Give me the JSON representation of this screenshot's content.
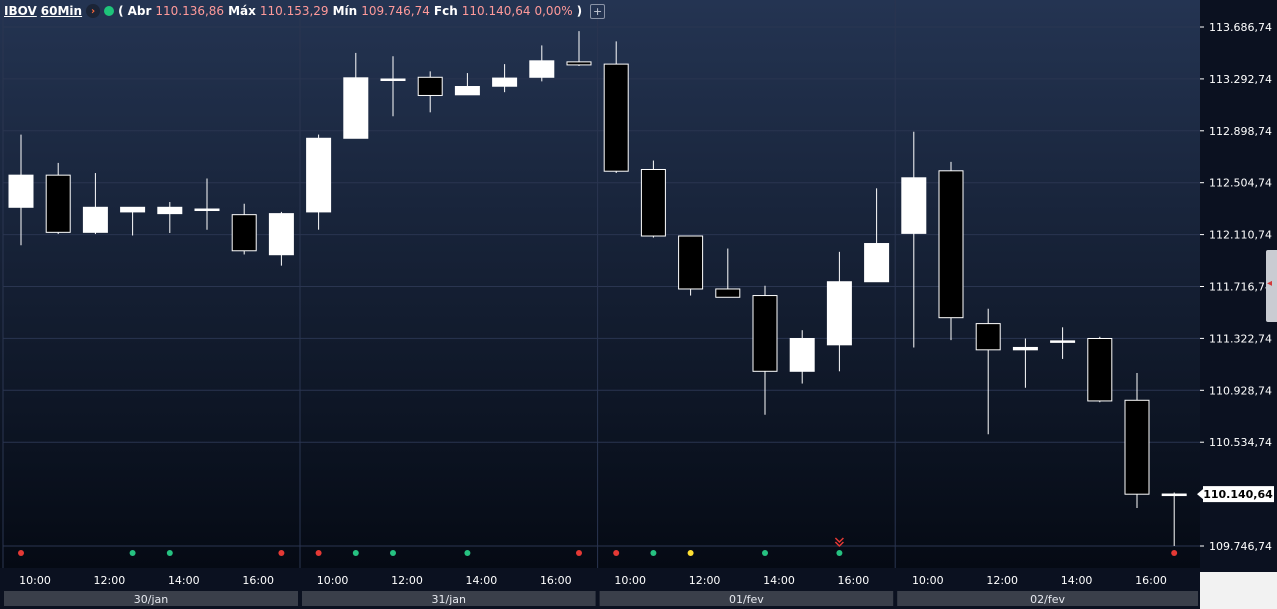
{
  "header": {
    "symbol": "IBOV",
    "timeframe": "60Min",
    "paren_open": "(",
    "abr_label": "Abr",
    "abr_value": "110.136,86",
    "max_label": "Máx",
    "max_value": "110.153,29",
    "min_label": "Mín",
    "min_value": "109.746,74",
    "fch_label": "Fch",
    "fch_value": "110.140,64",
    "change": "0,00%",
    "paren_close": ")",
    "plus": "+"
  },
  "colors": {
    "background_top": "#243452",
    "background_bottom": "#050a14",
    "bull_candle": "#ffffff",
    "bear_candle": "#000000",
    "wick": "#ffffff",
    "grid": "#2a3550",
    "dot_red": "#e53935",
    "dot_green": "#26c281",
    "dot_yellow": "#ffe033",
    "signal_arrow": "#e53935",
    "price_label_bg": "#ffffff",
    "axis_text": "#ffffff"
  },
  "chart_data": {
    "type": "candlestick",
    "y_axis": {
      "min": 109746.74,
      "max": 113686.74,
      "ticks": [
        113686.74,
        113292.74,
        112898.74,
        112504.74,
        112110.74,
        111716.74,
        111322.74,
        110928.74,
        110534.74,
        109746.74
      ],
      "tick_labels": [
        "113.686,74",
        "113.292,74",
        "112.898,74",
        "112.504,74",
        "112.110,74",
        "111.716,74",
        "111.322,74",
        "110.928,74",
        "110.534,74",
        "109.746,74"
      ],
      "position": "right"
    },
    "last_price": 110140.64,
    "last_price_label": "110.140,64",
    "x_time_labels": [
      {
        "index": 0,
        "text": "10:00"
      },
      {
        "index": 2,
        "text": "12:00"
      },
      {
        "index": 4,
        "text": "14:00"
      },
      {
        "index": 6,
        "text": "16:00"
      },
      {
        "index": 8,
        "text": "10:00"
      },
      {
        "index": 10,
        "text": "12:00"
      },
      {
        "index": 12,
        "text": "14:00"
      },
      {
        "index": 14,
        "text": "16:00"
      },
      {
        "index": 16,
        "text": "10:00"
      },
      {
        "index": 18,
        "text": "12:00"
      },
      {
        "index": 20,
        "text": "14:00"
      },
      {
        "index": 22,
        "text": "16:00"
      },
      {
        "index": 24,
        "text": "10:00"
      },
      {
        "index": 26,
        "text": "12:00"
      },
      {
        "index": 28,
        "text": "14:00"
      },
      {
        "index": 30,
        "text": "16:00"
      }
    ],
    "day_labels": [
      {
        "start": 0,
        "end": 7,
        "text": "30/jan"
      },
      {
        "start": 8,
        "end": 15,
        "text": "31/jan"
      },
      {
        "start": 16,
        "end": 23,
        "text": "01/fev"
      },
      {
        "start": 24,
        "end": 31,
        "text": "02/fev"
      }
    ],
    "candles": [
      {
        "o": 112318,
        "h": 112870,
        "l": 112030,
        "c": 112562
      },
      {
        "o": 112562,
        "h": 112655,
        "l": 112115,
        "c": 112128
      },
      {
        "o": 112128,
        "h": 112578,
        "l": 112115,
        "c": 112318
      },
      {
        "o": 112283,
        "h": 112318,
        "l": 112104,
        "c": 112318
      },
      {
        "o": 112270,
        "h": 112358,
        "l": 112123,
        "c": 112318
      },
      {
        "o": 112305,
        "h": 112537,
        "l": 112148,
        "c": 112305
      },
      {
        "o": 112262,
        "h": 112345,
        "l": 111960,
        "c": 111988
      },
      {
        "o": 111958,
        "h": 112283,
        "l": 111875,
        "c": 112270
      },
      {
        "o": 112283,
        "h": 112870,
        "l": 112148,
        "c": 112842
      },
      {
        "o": 112842,
        "h": 113490,
        "l": 112842,
        "c": 113301
      },
      {
        "o": 113292,
        "h": 113465,
        "l": 113009,
        "c": 113292
      },
      {
        "o": 113305,
        "h": 113350,
        "l": 113039,
        "c": 113167
      },
      {
        "o": 113172,
        "h": 113337,
        "l": 113172,
        "c": 113235
      },
      {
        "o": 113237,
        "h": 113405,
        "l": 113192,
        "c": 113299
      },
      {
        "o": 113305,
        "h": 113547,
        "l": 113274,
        "c": 113430
      },
      {
        "o": 113422,
        "h": 113655,
        "l": 113391,
        "c": 113399
      },
      {
        "o": 113405,
        "h": 113578,
        "l": 112578,
        "c": 112592
      },
      {
        "o": 112605,
        "h": 112673,
        "l": 112088,
        "c": 112100
      },
      {
        "o": 112100,
        "h": 112100,
        "l": 111648,
        "c": 111698
      },
      {
        "o": 111698,
        "h": 112005,
        "l": 111635,
        "c": 111635
      },
      {
        "o": 111648,
        "h": 111722,
        "l": 110743,
        "c": 111073
      },
      {
        "o": 111073,
        "h": 111385,
        "l": 110980,
        "c": 111322
      },
      {
        "o": 111274,
        "h": 111980,
        "l": 111073,
        "c": 111753
      },
      {
        "o": 111753,
        "h": 112462,
        "l": 111753,
        "c": 112043
      },
      {
        "o": 112120,
        "h": 112892,
        "l": 111254,
        "c": 112542
      },
      {
        "o": 112595,
        "h": 112663,
        "l": 111310,
        "c": 111480
      },
      {
        "o": 111435,
        "h": 111548,
        "l": 110595,
        "c": 111236
      },
      {
        "o": 111236,
        "h": 111322,
        "l": 110948,
        "c": 111254
      },
      {
        "o": 111304,
        "h": 111407,
        "l": 111167,
        "c": 111304
      },
      {
        "o": 111322,
        "h": 111335,
        "l": 110838,
        "c": 110848
      },
      {
        "o": 110853,
        "h": 111060,
        "l": 110035,
        "c": 110140
      },
      {
        "o": 110137,
        "h": 110153,
        "l": 109747,
        "c": 110141
      }
    ],
    "signal_dots": [
      {
        "index": 0,
        "color": "red"
      },
      {
        "index": 3,
        "color": "green"
      },
      {
        "index": 4,
        "color": "green"
      },
      {
        "index": 7,
        "color": "red"
      },
      {
        "index": 8,
        "color": "red"
      },
      {
        "index": 9,
        "color": "green"
      },
      {
        "index": 10,
        "color": "green"
      },
      {
        "index": 12,
        "color": "green"
      },
      {
        "index": 15,
        "color": "red"
      },
      {
        "index": 16,
        "color": "red"
      },
      {
        "index": 17,
        "color": "green"
      },
      {
        "index": 18,
        "color": "yellow"
      },
      {
        "index": 20,
        "color": "green"
      },
      {
        "index": 22,
        "color": "green"
      },
      {
        "index": 31,
        "color": "red"
      }
    ],
    "signal_arrows": [
      {
        "index": 22,
        "direction": "down",
        "color": "red"
      }
    ],
    "grid": true
  }
}
